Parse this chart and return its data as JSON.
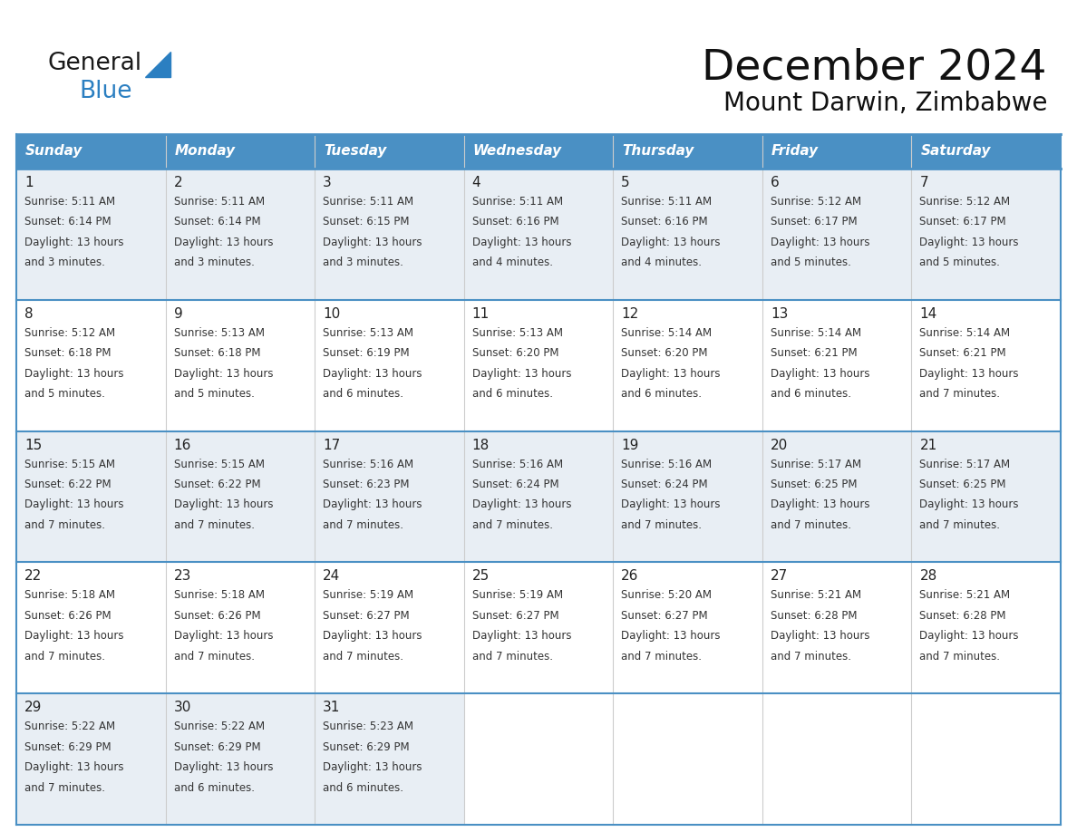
{
  "title": "December 2024",
  "subtitle": "Mount Darwin, Zimbabwe",
  "header_color": "#4a90c4",
  "header_text_color": "#ffffff",
  "cell_bg_even": "#e8eef4",
  "cell_bg_odd": "#ffffff",
  "border_color": "#4a90c4",
  "day_headers": [
    "Sunday",
    "Monday",
    "Tuesday",
    "Wednesday",
    "Thursday",
    "Friday",
    "Saturday"
  ],
  "days": [
    {
      "day": 1,
      "col": 0,
      "row": 0,
      "sunrise": "5:11 AM",
      "sunset": "6:14 PM",
      "daylight": "13 hours and 3 minutes."
    },
    {
      "day": 2,
      "col": 1,
      "row": 0,
      "sunrise": "5:11 AM",
      "sunset": "6:14 PM",
      "daylight": "13 hours and 3 minutes."
    },
    {
      "day": 3,
      "col": 2,
      "row": 0,
      "sunrise": "5:11 AM",
      "sunset": "6:15 PM",
      "daylight": "13 hours and 3 minutes."
    },
    {
      "day": 4,
      "col": 3,
      "row": 0,
      "sunrise": "5:11 AM",
      "sunset": "6:16 PM",
      "daylight": "13 hours and 4 minutes."
    },
    {
      "day": 5,
      "col": 4,
      "row": 0,
      "sunrise": "5:11 AM",
      "sunset": "6:16 PM",
      "daylight": "13 hours and 4 minutes."
    },
    {
      "day": 6,
      "col": 5,
      "row": 0,
      "sunrise": "5:12 AM",
      "sunset": "6:17 PM",
      "daylight": "13 hours and 5 minutes."
    },
    {
      "day": 7,
      "col": 6,
      "row": 0,
      "sunrise": "5:12 AM",
      "sunset": "6:17 PM",
      "daylight": "13 hours and 5 minutes."
    },
    {
      "day": 8,
      "col": 0,
      "row": 1,
      "sunrise": "5:12 AM",
      "sunset": "6:18 PM",
      "daylight": "13 hours and 5 minutes."
    },
    {
      "day": 9,
      "col": 1,
      "row": 1,
      "sunrise": "5:13 AM",
      "sunset": "6:18 PM",
      "daylight": "13 hours and 5 minutes."
    },
    {
      "day": 10,
      "col": 2,
      "row": 1,
      "sunrise": "5:13 AM",
      "sunset": "6:19 PM",
      "daylight": "13 hours and 6 minutes."
    },
    {
      "day": 11,
      "col": 3,
      "row": 1,
      "sunrise": "5:13 AM",
      "sunset": "6:20 PM",
      "daylight": "13 hours and 6 minutes."
    },
    {
      "day": 12,
      "col": 4,
      "row": 1,
      "sunrise": "5:14 AM",
      "sunset": "6:20 PM",
      "daylight": "13 hours and 6 minutes."
    },
    {
      "day": 13,
      "col": 5,
      "row": 1,
      "sunrise": "5:14 AM",
      "sunset": "6:21 PM",
      "daylight": "13 hours and 6 minutes."
    },
    {
      "day": 14,
      "col": 6,
      "row": 1,
      "sunrise": "5:14 AM",
      "sunset": "6:21 PM",
      "daylight": "13 hours and 7 minutes."
    },
    {
      "day": 15,
      "col": 0,
      "row": 2,
      "sunrise": "5:15 AM",
      "sunset": "6:22 PM",
      "daylight": "13 hours and 7 minutes."
    },
    {
      "day": 16,
      "col": 1,
      "row": 2,
      "sunrise": "5:15 AM",
      "sunset": "6:22 PM",
      "daylight": "13 hours and 7 minutes."
    },
    {
      "day": 17,
      "col": 2,
      "row": 2,
      "sunrise": "5:16 AM",
      "sunset": "6:23 PM",
      "daylight": "13 hours and 7 minutes."
    },
    {
      "day": 18,
      "col": 3,
      "row": 2,
      "sunrise": "5:16 AM",
      "sunset": "6:24 PM",
      "daylight": "13 hours and 7 minutes."
    },
    {
      "day": 19,
      "col": 4,
      "row": 2,
      "sunrise": "5:16 AM",
      "sunset": "6:24 PM",
      "daylight": "13 hours and 7 minutes."
    },
    {
      "day": 20,
      "col": 5,
      "row": 2,
      "sunrise": "5:17 AM",
      "sunset": "6:25 PM",
      "daylight": "13 hours and 7 minutes."
    },
    {
      "day": 21,
      "col": 6,
      "row": 2,
      "sunrise": "5:17 AM",
      "sunset": "6:25 PM",
      "daylight": "13 hours and 7 minutes."
    },
    {
      "day": 22,
      "col": 0,
      "row": 3,
      "sunrise": "5:18 AM",
      "sunset": "6:26 PM",
      "daylight": "13 hours and 7 minutes."
    },
    {
      "day": 23,
      "col": 1,
      "row": 3,
      "sunrise": "5:18 AM",
      "sunset": "6:26 PM",
      "daylight": "13 hours and 7 minutes."
    },
    {
      "day": 24,
      "col": 2,
      "row": 3,
      "sunrise": "5:19 AM",
      "sunset": "6:27 PM",
      "daylight": "13 hours and 7 minutes."
    },
    {
      "day": 25,
      "col": 3,
      "row": 3,
      "sunrise": "5:19 AM",
      "sunset": "6:27 PM",
      "daylight": "13 hours and 7 minutes."
    },
    {
      "day": 26,
      "col": 4,
      "row": 3,
      "sunrise": "5:20 AM",
      "sunset": "6:27 PM",
      "daylight": "13 hours and 7 minutes."
    },
    {
      "day": 27,
      "col": 5,
      "row": 3,
      "sunrise": "5:21 AM",
      "sunset": "6:28 PM",
      "daylight": "13 hours and 7 minutes."
    },
    {
      "day": 28,
      "col": 6,
      "row": 3,
      "sunrise": "5:21 AM",
      "sunset": "6:28 PM",
      "daylight": "13 hours and 7 minutes."
    },
    {
      "day": 29,
      "col": 0,
      "row": 4,
      "sunrise": "5:22 AM",
      "sunset": "6:29 PM",
      "daylight": "13 hours and 7 minutes."
    },
    {
      "day": 30,
      "col": 1,
      "row": 4,
      "sunrise": "5:22 AM",
      "sunset": "6:29 PM",
      "daylight": "13 hours and 6 minutes."
    },
    {
      "day": 31,
      "col": 2,
      "row": 4,
      "sunrise": "5:23 AM",
      "sunset": "6:29 PM",
      "daylight": "13 hours and 6 minutes."
    }
  ],
  "num_rows": 5,
  "num_cols": 7,
  "logo_text1": "General",
  "logo_text2": "Blue",
  "logo_color1": "#1a1a1a",
  "logo_color2": "#2b7fc1",
  "logo_triangle_color": "#2b7fc1",
  "title_fontsize": 34,
  "subtitle_fontsize": 20,
  "header_fontsize": 11,
  "day_num_fontsize": 11,
  "cell_text_fontsize": 8.5
}
